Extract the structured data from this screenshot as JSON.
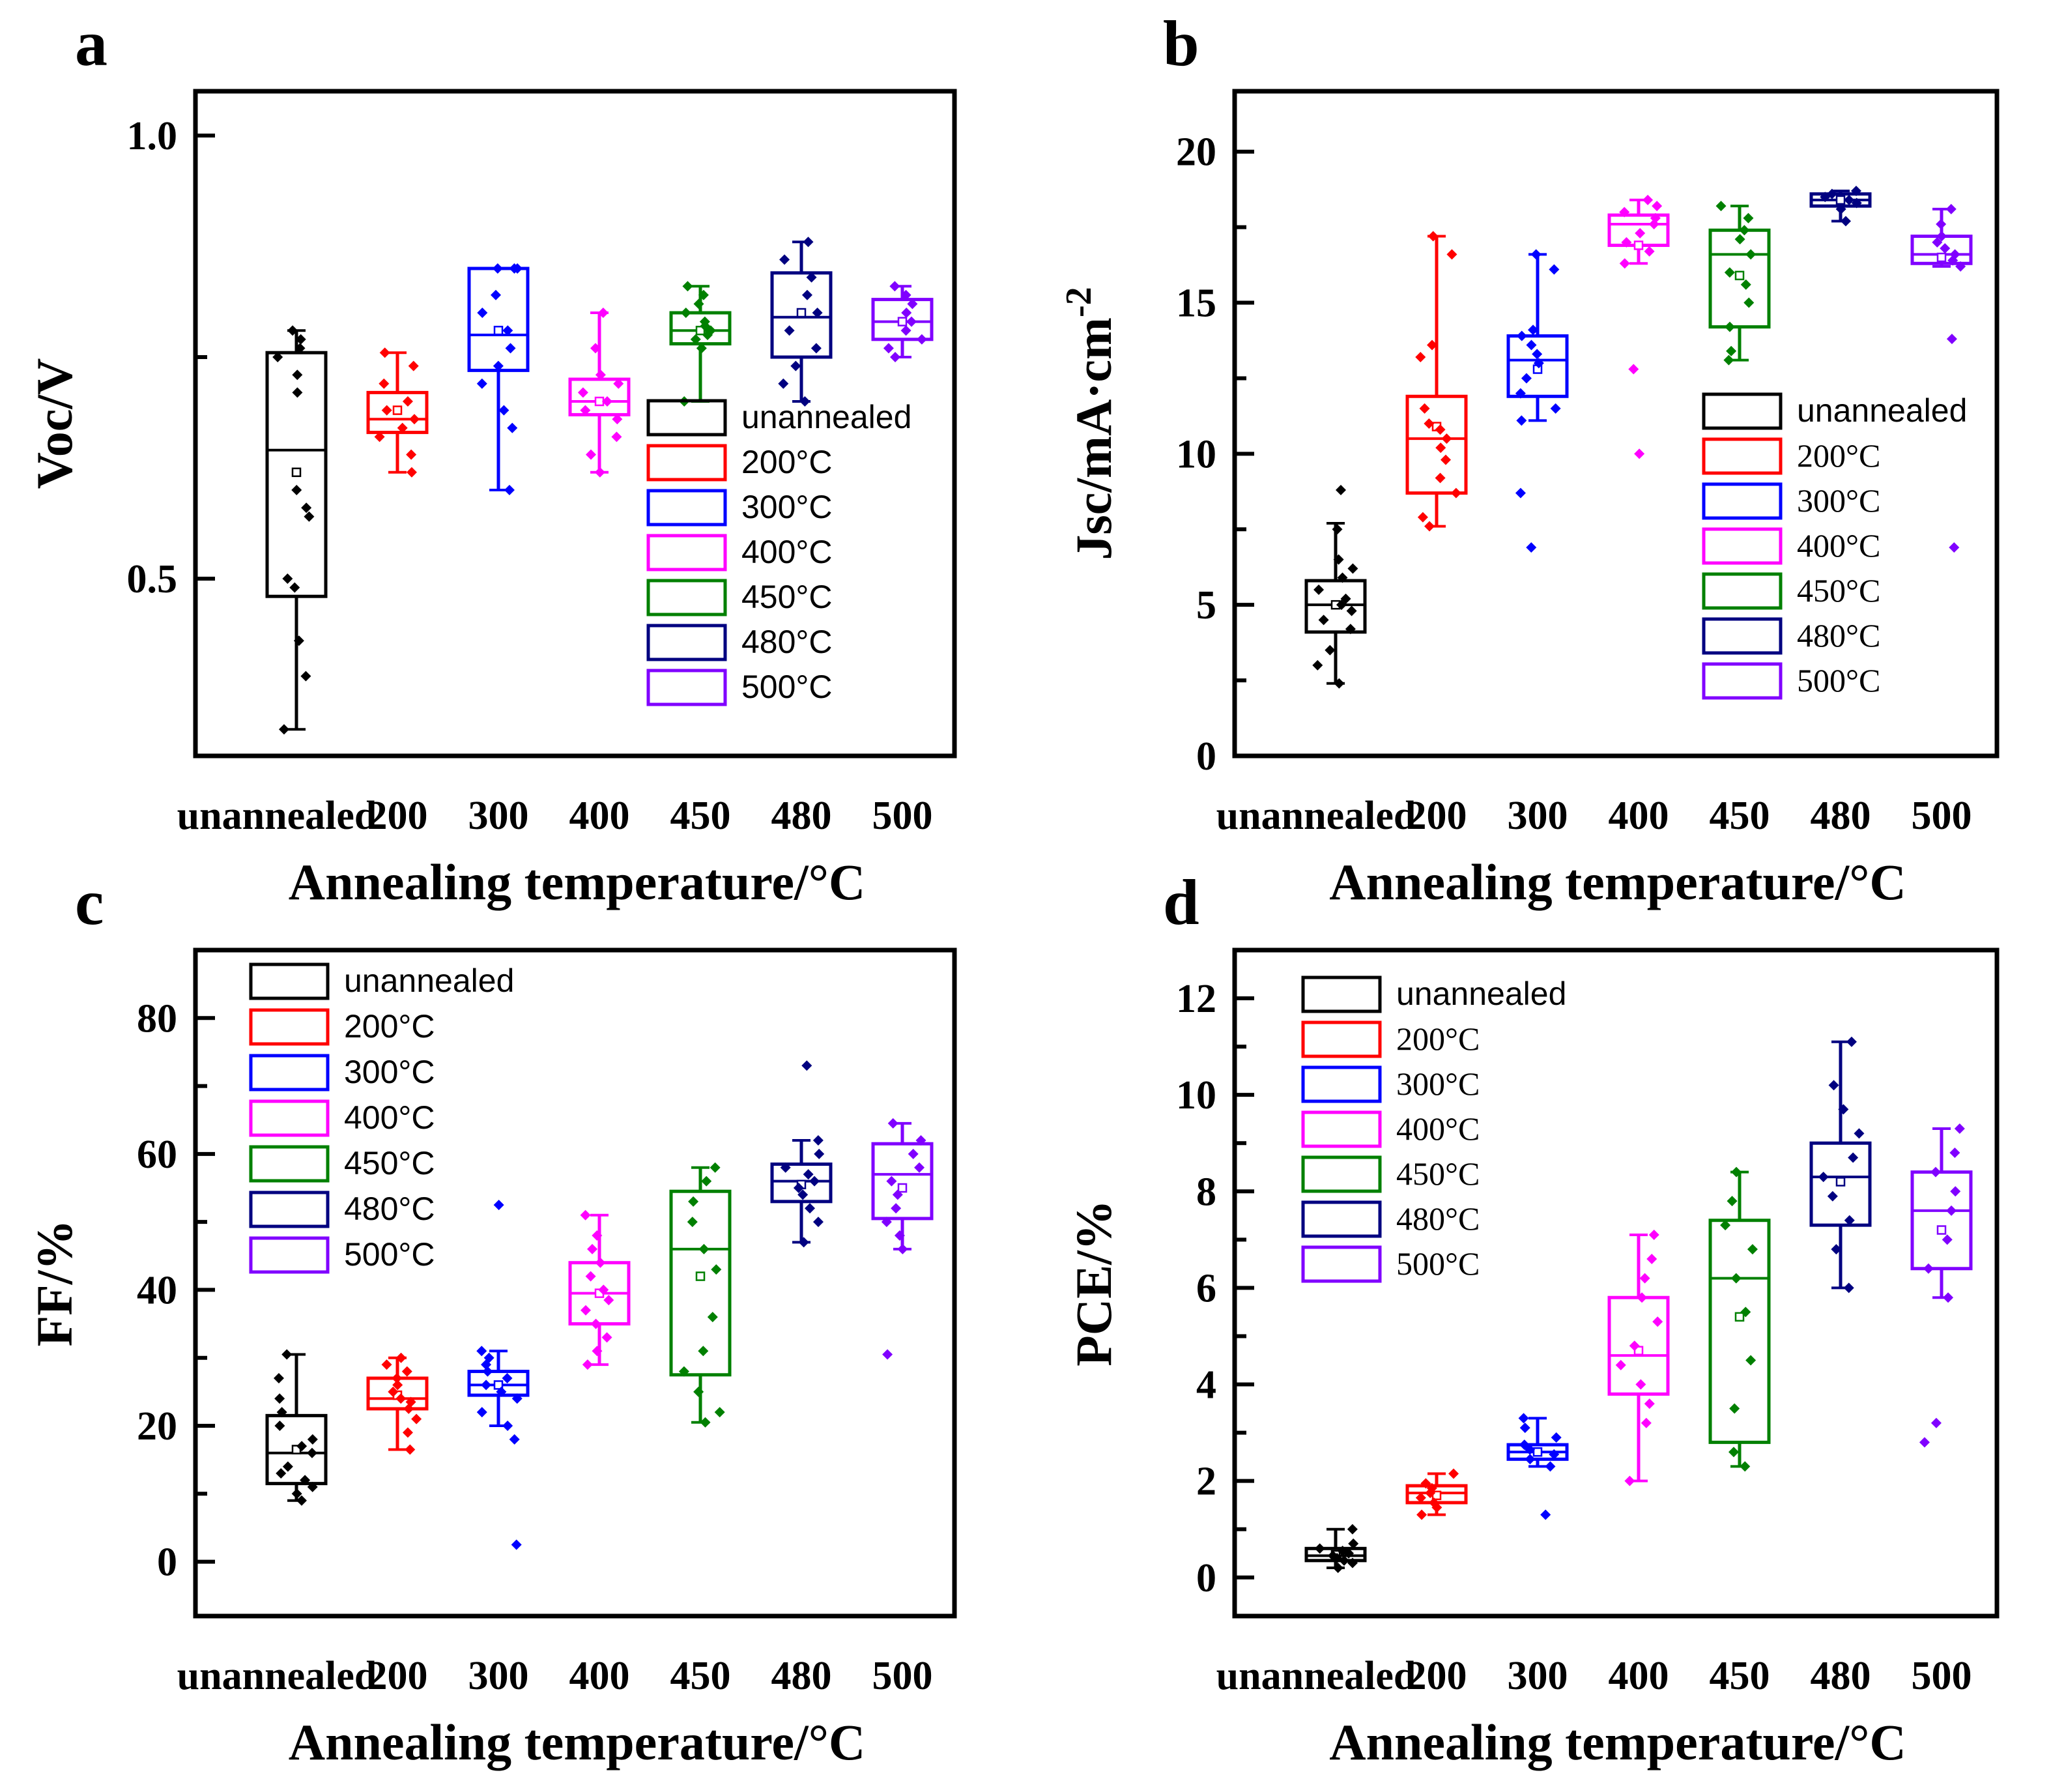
{
  "figure": {
    "categories": [
      "unannealed",
      "200",
      "300",
      "400",
      "450",
      "480",
      "500"
    ],
    "series_colors": [
      "#000000",
      "#ff0000",
      "#0000ff",
      "#ff00ff",
      "#008000",
      "#000080",
      "#8000ff"
    ],
    "legend_labels": [
      "unannealed",
      "200°C",
      "300°C",
      "400°C",
      "450°C",
      "480°C",
      "500°C"
    ]
  },
  "chart_data": [
    {
      "panel": "a",
      "type": "box",
      "xlabel": "Annealing temperature/°C",
      "ylabel": "Voc/V",
      "ylim": [
        0.3,
        1.05
      ],
      "yticks": [
        "0.5",
        "1.0"
      ],
      "legend_position": "lower-right",
      "boxes": [
        {
          "category": "unannealed",
          "whisker_low": 0.33,
          "q1": 0.48,
          "median": 0.645,
          "q3": 0.755,
          "whisker_high": 0.78,
          "mean": 0.62
        },
        {
          "category": "200",
          "whisker_low": 0.62,
          "q1": 0.665,
          "median": 0.68,
          "q3": 0.71,
          "whisker_high": 0.755,
          "mean": 0.69
        },
        {
          "category": "300",
          "whisker_low": 0.6,
          "q1": 0.735,
          "median": 0.775,
          "q3": 0.85,
          "whisker_high": 0.85,
          "mean": 0.78
        },
        {
          "category": "400",
          "whisker_low": 0.62,
          "q1": 0.685,
          "median": 0.7,
          "q3": 0.725,
          "whisker_high": 0.8,
          "mean": 0.7
        },
        {
          "category": "450",
          "whisker_low": 0.7,
          "q1": 0.765,
          "median": 0.78,
          "q3": 0.8,
          "whisker_high": 0.83,
          "mean": 0.78
        },
        {
          "category": "480",
          "whisker_low": 0.7,
          "q1": 0.75,
          "median": 0.795,
          "q3": 0.845,
          "whisker_high": 0.88,
          "mean": 0.8
        },
        {
          "category": "500",
          "whisker_low": 0.75,
          "q1": 0.77,
          "median": 0.79,
          "q3": 0.815,
          "whisker_high": 0.83,
          "mean": 0.79
        }
      ],
      "points": [
        [
          0.33,
          0.39,
          0.43,
          0.49,
          0.5,
          0.57,
          0.58,
          0.6,
          0.71,
          0.73,
          0.75,
          0.76,
          0.77,
          0.78
        ],
        [
          0.62,
          0.64,
          0.66,
          0.67,
          0.68,
          0.69,
          0.7,
          0.72,
          0.74,
          0.755
        ],
        [
          0.6,
          0.67,
          0.69,
          0.72,
          0.74,
          0.76,
          0.78,
          0.8,
          0.82,
          0.85,
          0.85,
          0.85
        ],
        [
          0.62,
          0.64,
          0.66,
          0.68,
          0.69,
          0.7,
          0.71,
          0.72,
          0.73,
          0.76,
          0.8
        ],
        [
          0.7,
          0.76,
          0.77,
          0.775,
          0.78,
          0.785,
          0.79,
          0.8,
          0.81,
          0.82,
          0.83
        ],
        [
          0.7,
          0.72,
          0.74,
          0.76,
          0.78,
          0.8,
          0.82,
          0.84,
          0.86,
          0.88
        ],
        [
          0.75,
          0.76,
          0.77,
          0.78,
          0.79,
          0.8,
          0.81,
          0.82,
          0.83
        ]
      ]
    },
    {
      "panel": "b",
      "type": "box",
      "xlabel": "Annealing temperature/°C",
      "ylabel": "Jsc/mA·cm",
      "ylabel_sup": "-2",
      "ylim": [
        0,
        22
      ],
      "yticks": [
        "0",
        "5",
        "10",
        "15",
        "20"
      ],
      "legend_position": "lower-right",
      "boxes": [
        {
          "category": "unannealed",
          "whisker_low": 2.4,
          "q1": 4.1,
          "median": 5,
          "q3": 5.8,
          "whisker_high": 7.7,
          "mean": 5
        },
        {
          "category": "200",
          "whisker_low": 7.6,
          "q1": 8.7,
          "median": 10.5,
          "q3": 11.9,
          "whisker_high": 17.2,
          "mean": 10.9
        },
        {
          "category": "300",
          "whisker_low": 11.1,
          "q1": 11.9,
          "median": 13.1,
          "q3": 13.9,
          "whisker_high": 16.6,
          "mean": 12.8
        },
        {
          "category": "400",
          "whisker_low": 16.3,
          "q1": 16.9,
          "median": 17.6,
          "q3": 17.9,
          "whisker_high": 18.4,
          "mean": 16.9
        },
        {
          "category": "450",
          "whisker_low": 13.1,
          "q1": 14.2,
          "median": 16.6,
          "q3": 17.4,
          "whisker_high": 18.2,
          "mean": 15.9
        },
        {
          "category": "480",
          "whisker_low": 17.7,
          "q1": 18.2,
          "median": 18.4,
          "q3": 18.6,
          "whisker_high": 18.7,
          "mean": 18.4
        },
        {
          "category": "500",
          "whisker_low": 16.2,
          "q1": 16.3,
          "median": 16.6,
          "q3": 17.2,
          "whisker_high": 18.1,
          "mean": 16.5
        }
      ],
      "points": [
        [
          2.4,
          3,
          3.5,
          4.2,
          4.5,
          4.8,
          5,
          5.2,
          5.5,
          5.9,
          6.2,
          6.5,
          7.5,
          8.8
        ],
        [
          7.6,
          7.9,
          8.7,
          9.2,
          9.8,
          10.2,
          10.5,
          10.8,
          11,
          11.5,
          13.2,
          13.6,
          16.6,
          17.2
        ],
        [
          6.9,
          8.7,
          11.1,
          11.5,
          12,
          12.5,
          13,
          13.3,
          13.6,
          13.9,
          14.1,
          16.1,
          16.6
        ],
        [
          10,
          12.8,
          16.3,
          16.7,
          17,
          17.3,
          17.6,
          17.8,
          18,
          18.2,
          18.4
        ],
        [
          13.1,
          13.4,
          14.2,
          15,
          15.6,
          16,
          16.6,
          17.1,
          17.4,
          17.8,
          18.2
        ],
        [
          17.7,
          18.1,
          18.3,
          18.4,
          18.5,
          18.6,
          18.7
        ],
        [
          6.9,
          13.8,
          16.2,
          16.4,
          16.6,
          16.8,
          17,
          17.2,
          17.6,
          18.1
        ]
      ]
    },
    {
      "panel": "c",
      "type": "box",
      "xlabel": "Annealing temperature/°C",
      "ylabel": "FF/%",
      "ylim": [
        -8,
        90
      ],
      "yticks": [
        "0",
        "20",
        "40",
        "60",
        "80"
      ],
      "legend_position": "top-left",
      "boxes": [
        {
          "category": "unannealed",
          "whisker_low": 9,
          "q1": 11.5,
          "median": 16,
          "q3": 21.5,
          "whisker_high": 30.5,
          "mean": 16.5
        },
        {
          "category": "200",
          "whisker_low": 16.5,
          "q1": 22.5,
          "median": 24,
          "q3": 27,
          "whisker_high": 30,
          "mean": 24.5
        },
        {
          "category": "300",
          "whisker_low": 20,
          "q1": 24.5,
          "median": 26,
          "q3": 28,
          "whisker_high": 31,
          "mean": 26
        },
        {
          "category": "400",
          "whisker_low": 29,
          "q1": 35,
          "median": 39.5,
          "q3": 44,
          "whisker_high": 51,
          "mean": 39.5
        },
        {
          "category": "450",
          "whisker_low": 20.5,
          "q1": 27.5,
          "median": 46,
          "q3": 54.5,
          "whisker_high": 58,
          "mean": 42
        },
        {
          "category": "480",
          "whisker_low": 47,
          "q1": 53,
          "median": 56,
          "q3": 58.5,
          "whisker_high": 62,
          "mean": 55.5
        },
        {
          "category": "500",
          "whisker_low": 46,
          "q1": 50.5,
          "median": 57,
          "q3": 61.5,
          "whisker_high": 64.5,
          "mean": 55
        }
      ],
      "points": [
        [
          9,
          10,
          11,
          12,
          13,
          14,
          16,
          17,
          18,
          20,
          22,
          24,
          27,
          30.5
        ],
        [
          16.5,
          19,
          21,
          22.5,
          23.5,
          24,
          25,
          26,
          27,
          28,
          29,
          30
        ],
        [
          2.5,
          18,
          20,
          22,
          24,
          25,
          26,
          27,
          28,
          29,
          30,
          31,
          52.5
        ],
        [
          29,
          31,
          33,
          35,
          37,
          38.5,
          40,
          42,
          44,
          46,
          48,
          51
        ],
        [
          20.5,
          22,
          25,
          28,
          31,
          36,
          43,
          46,
          50,
          53,
          56,
          58
        ],
        [
          47,
          50,
          52,
          54,
          55,
          56,
          57,
          58,
          60,
          62,
          73
        ],
        [
          30.5,
          46,
          48,
          50,
          52,
          54,
          56,
          58,
          60,
          62,
          64.5
        ]
      ]
    },
    {
      "panel": "d",
      "type": "box",
      "xlabel": "Annealing temperature/°C",
      "ylabel": "PCE/%",
      "ylim": [
        -0.8,
        13
      ],
      "yticks": [
        "0",
        "2",
        "4",
        "6",
        "8",
        "10",
        "12"
      ],
      "legend_position": "top-left",
      "boxes": [
        {
          "category": "unannealed",
          "whisker_low": 0.2,
          "q1": 0.35,
          "median": 0.45,
          "q3": 0.6,
          "whisker_high": 1.0,
          "mean": 0.47
        },
        {
          "category": "200",
          "whisker_low": 1.3,
          "q1": 1.55,
          "median": 1.75,
          "q3": 1.9,
          "whisker_high": 2.15,
          "mean": 1.7
        },
        {
          "category": "300",
          "whisker_low": 2.3,
          "q1": 2.45,
          "median": 2.6,
          "q3": 2.75,
          "whisker_high": 3.3,
          "mean": 2.6
        },
        {
          "category": "400",
          "whisker_low": 2.0,
          "q1": 3.8,
          "median": 4.6,
          "q3": 5.8,
          "whisker_high": 7.1,
          "mean": 4.7
        },
        {
          "category": "450",
          "whisker_low": 2.3,
          "q1": 2.8,
          "median": 6.2,
          "q3": 7.4,
          "whisker_high": 8.4,
          "mean": 5.4
        },
        {
          "category": "480",
          "whisker_low": 6.0,
          "q1": 7.3,
          "median": 8.3,
          "q3": 9.0,
          "whisker_high": 11.1,
          "mean": 8.2
        },
        {
          "category": "500",
          "whisker_low": 5.8,
          "q1": 6.4,
          "median": 7.6,
          "q3": 8.4,
          "whisker_high": 9.3,
          "mean": 7.2
        }
      ],
      "points": [
        [
          0.2,
          0.3,
          0.35,
          0.4,
          0.45,
          0.5,
          0.55,
          0.6,
          0.7,
          1.0
        ],
        [
          1.3,
          1.45,
          1.55,
          1.65,
          1.75,
          1.85,
          1.95,
          2.15
        ],
        [
          1.3,
          2.3,
          2.45,
          2.55,
          2.65,
          2.75,
          2.9,
          3.1,
          3.3
        ],
        [
          2.0,
          3.2,
          3.6,
          4.0,
          4.4,
          4.8,
          5.3,
          5.8,
          6.2,
          6.6,
          7.1
        ],
        [
          2.3,
          2.6,
          3.5,
          4.5,
          5.5,
          6.2,
          6.8,
          7.3,
          7.8,
          8.4
        ],
        [
          6.0,
          6.8,
          7.4,
          7.9,
          8.3,
          8.7,
          9.2,
          9.7,
          10.2,
          11.1
        ],
        [
          2.8,
          3.2,
          5.8,
          6.4,
          7.0,
          7.6,
          8.0,
          8.4,
          8.8,
          9.3
        ]
      ]
    }
  ]
}
